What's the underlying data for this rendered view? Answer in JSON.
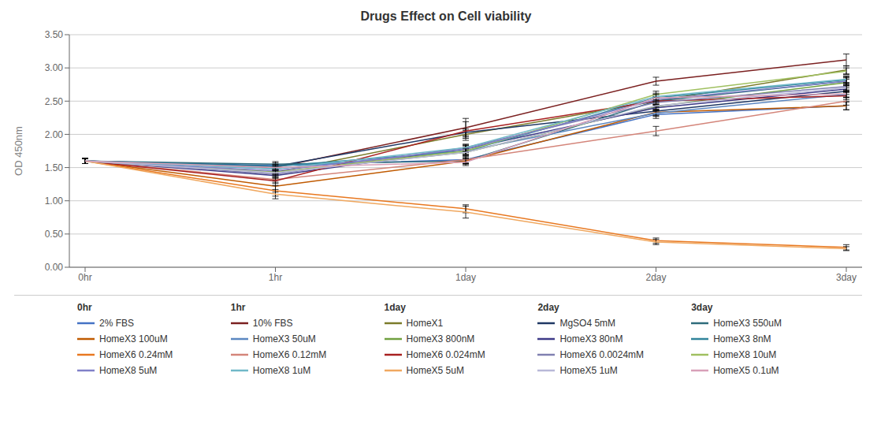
{
  "chart_data": {
    "type": "line",
    "title": "Drugs Effect on Cell viability",
    "ylabel": "OD 450nm",
    "categories": [
      "0hr",
      "1hr",
      "1day",
      "2day",
      "3day"
    ],
    "ylim": [
      0.0,
      3.5
    ],
    "yticks": [
      {
        "value": 0.0,
        "label": "0.00"
      },
      {
        "value": 0.5,
        "label": "0.50"
      },
      {
        "value": 1.0,
        "label": "1.00"
      },
      {
        "value": 1.5,
        "label": "1.50"
      },
      {
        "value": 2.0,
        "label": "2.00"
      },
      {
        "value": 2.5,
        "label": "2.50"
      },
      {
        "value": 3.0,
        "label": "3.00"
      },
      {
        "value": 3.5,
        "label": "3.50"
      }
    ],
    "grid": true,
    "legend": "bottom",
    "annotations": [
      "0hr",
      "1hr",
      "1day",
      "2day",
      "3day"
    ],
    "series": [
      {
        "name": "2% FBS",
        "color": "#4472C4",
        "values": [
          1.6,
          1.53,
          1.62,
          2.3,
          2.43
        ],
        "yerr": [
          0.04,
          0.04,
          0.06,
          0.06,
          0.06
        ]
      },
      {
        "name": "10% FBS",
        "color": "#7B2020",
        "values": [
          1.6,
          1.5,
          2.1,
          2.8,
          3.12
        ],
        "yerr": [
          0.04,
          0.04,
          0.14,
          0.06,
          0.09
        ]
      },
      {
        "name": "HomeX1",
        "color": "#7B7B2A",
        "values": [
          1.6,
          1.43,
          2.0,
          2.5,
          2.97
        ],
        "yerr": [
          0.04,
          0.04,
          0.06,
          0.06,
          0.06
        ]
      },
      {
        "name": "MgSO4 5mM",
        "color": "#1F3864",
        "values": [
          1.6,
          1.52,
          2.03,
          2.35,
          2.65
        ],
        "yerr": [
          0.04,
          0.03,
          0.05,
          0.06,
          0.05
        ]
      },
      {
        "name": "HomeX3 550uM",
        "color": "#2E6B7B",
        "values": [
          1.6,
          1.55,
          1.6,
          2.5,
          2.8
        ],
        "yerr": [
          0.04,
          0.04,
          0.04,
          0.05,
          0.06
        ]
      },
      {
        "name": "HomeX3 100uM",
        "color": "#C05A00",
        "values": [
          1.6,
          1.22,
          1.6,
          2.33,
          2.43
        ],
        "yerr": [
          0.04,
          0.09,
          0.05,
          0.05,
          0.06
        ]
      },
      {
        "name": "HomeX3 50uM",
        "color": "#5B87C1",
        "values": [
          1.6,
          1.48,
          1.75,
          2.32,
          2.6
        ],
        "yerr": [
          0.04,
          0.04,
          0.05,
          0.05,
          0.05
        ]
      },
      {
        "name": "HomeX3 800nM",
        "color": "#70A040",
        "values": [
          1.6,
          1.43,
          1.73,
          2.42,
          2.78
        ],
        "yerr": [
          0.04,
          0.04,
          0.05,
          0.05,
          0.05
        ]
      },
      {
        "name": "HomeX3 80nM",
        "color": "#3D3A87",
        "values": [
          1.6,
          1.38,
          1.78,
          2.4,
          2.68
        ],
        "yerr": [
          0.04,
          0.04,
          0.05,
          0.05,
          0.05
        ]
      },
      {
        "name": "HomeX3 8nM",
        "color": "#31849B",
        "values": [
          1.6,
          1.52,
          1.75,
          2.55,
          2.82
        ],
        "yerr": [
          0.04,
          0.03,
          0.05,
          0.05,
          0.05
        ]
      },
      {
        "name": "HomeX6 0.24mM",
        "color": "#E87820",
        "values": [
          1.6,
          1.15,
          0.88,
          0.4,
          0.3
        ],
        "yerr": [
          0.04,
          0.08,
          0.06,
          0.04,
          0.04
        ]
      },
      {
        "name": "HomeX6 0.12mM",
        "color": "#D4857A",
        "values": [
          1.6,
          1.32,
          1.62,
          2.05,
          2.5
        ],
        "yerr": [
          0.04,
          0.04,
          0.05,
          0.07,
          0.06
        ]
      },
      {
        "name": "HomeX6 0.024mM",
        "color": "#A82020",
        "values": [
          1.6,
          1.3,
          2.05,
          2.5,
          2.58
        ],
        "yerr": [
          0.04,
          0.04,
          0.14,
          0.06,
          0.06
        ]
      },
      {
        "name": "HomeX6 0.0024mM",
        "color": "#8080B0",
        "values": [
          1.6,
          1.4,
          1.8,
          2.48,
          2.72
        ],
        "yerr": [
          0.04,
          0.04,
          0.05,
          0.07,
          0.05
        ]
      },
      {
        "name": "HomeX8 10uM",
        "color": "#A0C060",
        "values": [
          1.6,
          1.43,
          1.75,
          2.6,
          2.95
        ],
        "yerr": [
          0.04,
          0.04,
          0.05,
          0.05,
          0.05
        ]
      },
      {
        "name": "HomeX8 5uM",
        "color": "#8080C8",
        "values": [
          1.6,
          1.45,
          1.78,
          2.52,
          2.8
        ],
        "yerr": [
          0.04,
          0.04,
          0.05,
          0.05,
          0.05
        ]
      },
      {
        "name": "HomeX8 1uM",
        "color": "#70B8C8",
        "values": [
          1.6,
          1.48,
          1.8,
          2.57,
          2.83
        ],
        "yerr": [
          0.04,
          0.03,
          0.05,
          0.05,
          0.05
        ]
      },
      {
        "name": "HomeX5 5uM",
        "color": "#F0A860",
        "values": [
          1.6,
          1.1,
          0.83,
          0.38,
          0.28
        ],
        "yerr": [
          0.04,
          0.07,
          0.09,
          0.04,
          0.03
        ]
      },
      {
        "name": "HomeX5 1uM",
        "color": "#B8B8D8",
        "values": [
          1.6,
          1.42,
          1.73,
          2.43,
          2.7
        ],
        "yerr": [
          0.04,
          0.04,
          0.05,
          0.07,
          0.05
        ]
      },
      {
        "name": "HomeX5 0.1uM",
        "color": "#D8A0B8",
        "values": [
          1.6,
          1.5,
          1.58,
          2.55,
          2.61
        ],
        "yerr": [
          0.04,
          0.03,
          0.05,
          0.05,
          0.05
        ]
      }
    ]
  }
}
